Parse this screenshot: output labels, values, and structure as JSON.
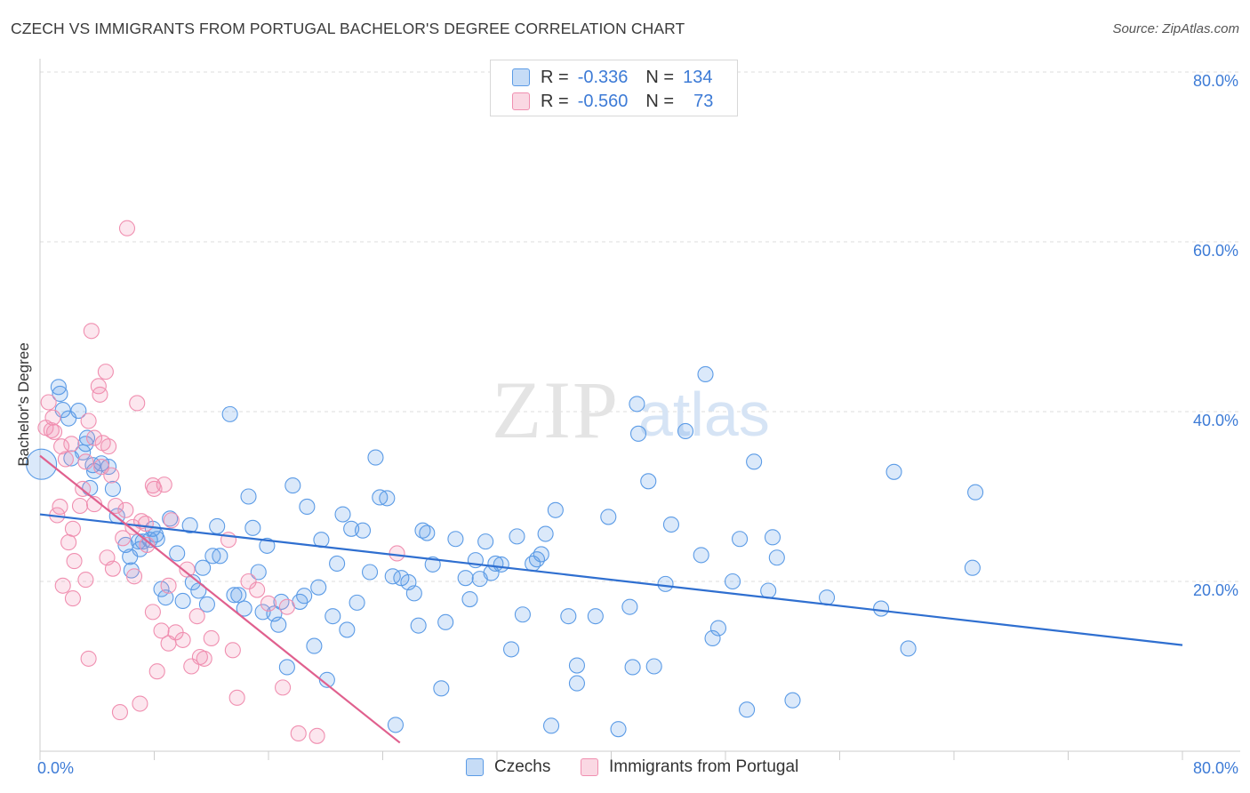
{
  "header": {
    "title": "CZECH VS IMMIGRANTS FROM PORTUGAL BACHELOR'S DEGREE CORRELATION CHART",
    "source": "Source: ZipAtlas.com"
  },
  "legend": {
    "rows": [
      {
        "r_label": "R =",
        "r_value": "-0.336",
        "n_label": "N =",
        "n_value": "134",
        "color": "#5b9be6"
      },
      {
        "r_label": "R =",
        "r_value": "-0.560",
        "n_label": "N =",
        "n_value": "73",
        "color": "#f08fb0"
      }
    ]
  },
  "bottom_legend": [
    "Czechs",
    "Immigrants from Portugal"
  ],
  "watermark": {
    "zip": "ZIP",
    "atlas": "atlas"
  },
  "chart_data": {
    "type": "scatter",
    "title": "CZECH VS IMMIGRANTS FROM PORTUGAL BACHELOR'S DEGREE CORRELATION CHART",
    "ylabel": "Bachelor's Degree",
    "xlabel": "",
    "xlim": [
      0,
      80
    ],
    "ylim": [
      0,
      80
    ],
    "x_tick_labels": [
      "0.0%",
      "80.0%"
    ],
    "y_tick_labels": [
      "20.0%",
      "40.0%",
      "60.0%",
      "80.0%"
    ],
    "y_ticks": [
      20,
      40,
      60,
      80
    ],
    "grid": "horizontal dashed",
    "legend_position": "top-center",
    "colors": {
      "czechs": "#5b9be6",
      "portugal": "#f08fb0",
      "czechs_line": "#2f6fd0",
      "portugal_line": "#e0608e",
      "axis_text": "#3d7bd6"
    },
    "series": [
      {
        "name": "Czechs",
        "r": -0.336,
        "n": 134,
        "trend": {
          "x": [
            0,
            80
          ],
          "y": [
            27.9,
            12.5
          ]
        },
        "points": [
          [
            0.1,
            33.8
          ],
          [
            1.3,
            42.9
          ],
          [
            1.4,
            42.1
          ],
          [
            1.6,
            40.2
          ],
          [
            2.0,
            39.2
          ],
          [
            2.2,
            34.5
          ],
          [
            2.7,
            40.1
          ],
          [
            3.0,
            35.2
          ],
          [
            3.2,
            36.2
          ],
          [
            3.3,
            36.9
          ],
          [
            3.5,
            31.0
          ],
          [
            3.7,
            33.7
          ],
          [
            3.8,
            33.0
          ],
          [
            4.3,
            33.9
          ],
          [
            4.8,
            33.5
          ],
          [
            5.1,
            30.9
          ],
          [
            5.4,
            27.7
          ],
          [
            6.0,
            24.3
          ],
          [
            6.3,
            22.9
          ],
          [
            6.4,
            21.3
          ],
          [
            6.9,
            24.7
          ],
          [
            7.0,
            23.8
          ],
          [
            7.2,
            24.7
          ],
          [
            7.7,
            24.9
          ],
          [
            7.9,
            26.2
          ],
          [
            8.1,
            25.5
          ],
          [
            8.2,
            25.0
          ],
          [
            8.5,
            19.1
          ],
          [
            8.8,
            18.1
          ],
          [
            9.1,
            27.4
          ],
          [
            9.6,
            23.3
          ],
          [
            10.0,
            17.7
          ],
          [
            10.5,
            26.6
          ],
          [
            10.7,
            19.9
          ],
          [
            11.1,
            18.9
          ],
          [
            11.4,
            21.6
          ],
          [
            11.7,
            17.3
          ],
          [
            12.1,
            23.0
          ],
          [
            12.4,
            26.5
          ],
          [
            12.6,
            23.0
          ],
          [
            13.3,
            39.7
          ],
          [
            13.6,
            18.4
          ],
          [
            13.9,
            18.4
          ],
          [
            14.3,
            16.8
          ],
          [
            14.6,
            30.0
          ],
          [
            14.9,
            26.3
          ],
          [
            15.3,
            21.1
          ],
          [
            15.6,
            16.4
          ],
          [
            15.9,
            24.2
          ],
          [
            16.4,
            16.2
          ],
          [
            16.7,
            14.9
          ],
          [
            16.9,
            17.6
          ],
          [
            17.3,
            9.9
          ],
          [
            17.7,
            31.3
          ],
          [
            18.2,
            17.6
          ],
          [
            18.5,
            18.3
          ],
          [
            18.7,
            28.8
          ],
          [
            19.2,
            12.4
          ],
          [
            19.5,
            19.3
          ],
          [
            19.7,
            24.9
          ],
          [
            20.1,
            8.4
          ],
          [
            20.5,
            15.9
          ],
          [
            20.8,
            22.1
          ],
          [
            21.2,
            27.9
          ],
          [
            21.5,
            14.3
          ],
          [
            21.8,
            26.2
          ],
          [
            22.2,
            17.5
          ],
          [
            22.6,
            26.0
          ],
          [
            23.1,
            21.1
          ],
          [
            23.5,
            34.6
          ],
          [
            23.8,
            29.9
          ],
          [
            24.3,
            29.8
          ],
          [
            24.7,
            20.6
          ],
          [
            24.9,
            3.1
          ],
          [
            25.3,
            20.4
          ],
          [
            25.8,
            19.9
          ],
          [
            26.2,
            18.6
          ],
          [
            26.5,
            14.8
          ],
          [
            26.8,
            26.0
          ],
          [
            27.1,
            25.7
          ],
          [
            27.5,
            22.0
          ],
          [
            28.1,
            7.4
          ],
          [
            28.4,
            15.2
          ],
          [
            29.1,
            25.0
          ],
          [
            29.8,
            20.4
          ],
          [
            30.1,
            17.9
          ],
          [
            30.5,
            22.5
          ],
          [
            30.8,
            20.3
          ],
          [
            31.2,
            24.7
          ],
          [
            31.6,
            21.0
          ],
          [
            31.9,
            22.1
          ],
          [
            32.3,
            22.0
          ],
          [
            33.0,
            12.0
          ],
          [
            33.4,
            25.3
          ],
          [
            33.8,
            16.1
          ],
          [
            34.5,
            22.1
          ],
          [
            34.8,
            22.6
          ],
          [
            35.1,
            23.2
          ],
          [
            35.4,
            25.6
          ],
          [
            35.8,
            3.0
          ],
          [
            36.1,
            28.4
          ],
          [
            37.0,
            15.9
          ],
          [
            37.6,
            10.1
          ],
          [
            37.6,
            8.0
          ],
          [
            38.9,
            15.9
          ],
          [
            39.8,
            27.6
          ],
          [
            40.5,
            2.6
          ],
          [
            41.3,
            17.0
          ],
          [
            41.5,
            9.9
          ],
          [
            41.8,
            40.9
          ],
          [
            41.9,
            37.4
          ],
          [
            42.6,
            31.8
          ],
          [
            43.0,
            10.0
          ],
          [
            43.8,
            19.7
          ],
          [
            44.2,
            26.7
          ],
          [
            45.2,
            37.7
          ],
          [
            46.3,
            23.1
          ],
          [
            46.6,
            44.4
          ],
          [
            47.1,
            13.3
          ],
          [
            47.5,
            14.5
          ],
          [
            48.5,
            20.0
          ],
          [
            49.0,
            25.0
          ],
          [
            49.5,
            4.9
          ],
          [
            50.0,
            34.1
          ],
          [
            51.0,
            18.9
          ],
          [
            51.3,
            25.2
          ],
          [
            51.6,
            22.8
          ],
          [
            52.7,
            6.0
          ],
          [
            55.1,
            18.1
          ],
          [
            58.9,
            16.8
          ],
          [
            59.8,
            32.9
          ],
          [
            60.8,
            12.1
          ],
          [
            65.3,
            21.6
          ],
          [
            65.5,
            30.5
          ]
        ]
      },
      {
        "name": "Immigrants from Portugal",
        "r": -0.56,
        "n": 73,
        "trend": {
          "x": [
            0,
            25.2
          ],
          "y": [
            34.8,
            1.0
          ]
        },
        "points": [
          [
            0.4,
            38.1
          ],
          [
            0.6,
            41.1
          ],
          [
            0.8,
            37.8
          ],
          [
            0.9,
            39.3
          ],
          [
            1.0,
            37.6
          ],
          [
            1.2,
            27.8
          ],
          [
            1.4,
            28.8
          ],
          [
            1.5,
            35.9
          ],
          [
            1.6,
            19.5
          ],
          [
            1.8,
            34.4
          ],
          [
            2.0,
            24.6
          ],
          [
            2.2,
            36.2
          ],
          [
            2.3,
            26.2
          ],
          [
            2.3,
            18.0
          ],
          [
            2.4,
            22.4
          ],
          [
            2.8,
            28.9
          ],
          [
            3.0,
            30.9
          ],
          [
            3.2,
            34.1
          ],
          [
            3.2,
            20.2
          ],
          [
            3.4,
            38.9
          ],
          [
            3.4,
            10.9
          ],
          [
            3.6,
            49.5
          ],
          [
            3.8,
            29.1
          ],
          [
            3.8,
            36.9
          ],
          [
            4.1,
            43.0
          ],
          [
            4.2,
            42.0
          ],
          [
            4.3,
            33.5
          ],
          [
            4.4,
            36.3
          ],
          [
            4.6,
            44.7
          ],
          [
            4.7,
            22.8
          ],
          [
            4.8,
            35.9
          ],
          [
            5.0,
            32.5
          ],
          [
            5.1,
            21.5
          ],
          [
            5.3,
            28.9
          ],
          [
            5.6,
            4.6
          ],
          [
            5.8,
            25.1
          ],
          [
            6.0,
            28.4
          ],
          [
            6.1,
            61.6
          ],
          [
            6.5,
            26.4
          ],
          [
            6.6,
            20.6
          ],
          [
            6.8,
            41.0
          ],
          [
            7.0,
            5.6
          ],
          [
            7.1,
            27.1
          ],
          [
            7.4,
            26.8
          ],
          [
            7.5,
            24.3
          ],
          [
            7.9,
            16.4
          ],
          [
            7.9,
            31.3
          ],
          [
            8.0,
            30.9
          ],
          [
            8.2,
            9.4
          ],
          [
            8.5,
            14.2
          ],
          [
            8.7,
            31.4
          ],
          [
            9.0,
            12.7
          ],
          [
            9.0,
            19.5
          ],
          [
            9.2,
            27.2
          ],
          [
            9.5,
            14.0
          ],
          [
            10.0,
            13.1
          ],
          [
            10.3,
            21.4
          ],
          [
            10.6,
            10.0
          ],
          [
            11.0,
            15.9
          ],
          [
            11.2,
            11.1
          ],
          [
            11.5,
            10.9
          ],
          [
            12.0,
            13.3
          ],
          [
            13.2,
            24.9
          ],
          [
            13.5,
            11.9
          ],
          [
            13.8,
            6.3
          ],
          [
            14.6,
            20.0
          ],
          [
            15.2,
            19.0
          ],
          [
            16.0,
            17.4
          ],
          [
            17.0,
            7.5
          ],
          [
            17.3,
            17.0
          ],
          [
            18.1,
            2.1
          ],
          [
            19.4,
            1.8
          ],
          [
            25.0,
            23.3
          ]
        ]
      }
    ]
  }
}
